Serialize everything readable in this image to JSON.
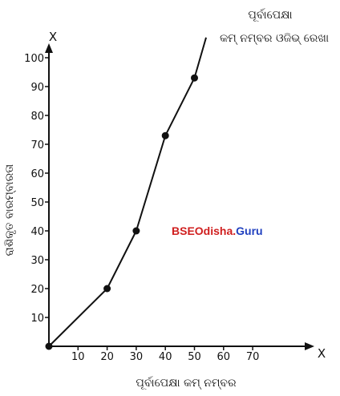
{
  "chart_data": {
    "type": "line",
    "title_line1": "ପୂର୍ବାପେକ୍ଷା",
    "title_line2": "କମ୍ ନମ୍ବର ଓଜିଭ୍ ରେଖା",
    "xlabel": "ପୂର୍ବାପେକ୍ଷା କମ୍ ନମ୍ବର",
    "ylabel": "ରାଶିକୃତ ବାରମ୍ବାରତା",
    "x_axis_letter": "X",
    "y_axis_letter": "X",
    "x_ticks": [
      "10",
      "20",
      "30",
      "40",
      "50",
      "60",
      "70"
    ],
    "y_ticks": [
      "10",
      "20",
      "30",
      "40",
      "50",
      "60",
      "70",
      "80",
      "90",
      "100"
    ],
    "xlim": [
      0,
      80
    ],
    "ylim": [
      0,
      100
    ],
    "points": [
      {
        "x": 0,
        "y": 0
      },
      {
        "x": 20,
        "y": 20
      },
      {
        "x": 30,
        "y": 40
      },
      {
        "x": 40,
        "y": 73
      },
      {
        "x": 50,
        "y": 93
      }
    ],
    "line_extension_to": {
      "x": 54,
      "y": 107
    },
    "grid": false,
    "line_color": "#111111",
    "marker_color": "#111111"
  },
  "watermark": {
    "part1": "BSEOdisha.",
    "part2": "Guru",
    "color1": "#d01f1f",
    "color2": "#1f3fbf"
  }
}
